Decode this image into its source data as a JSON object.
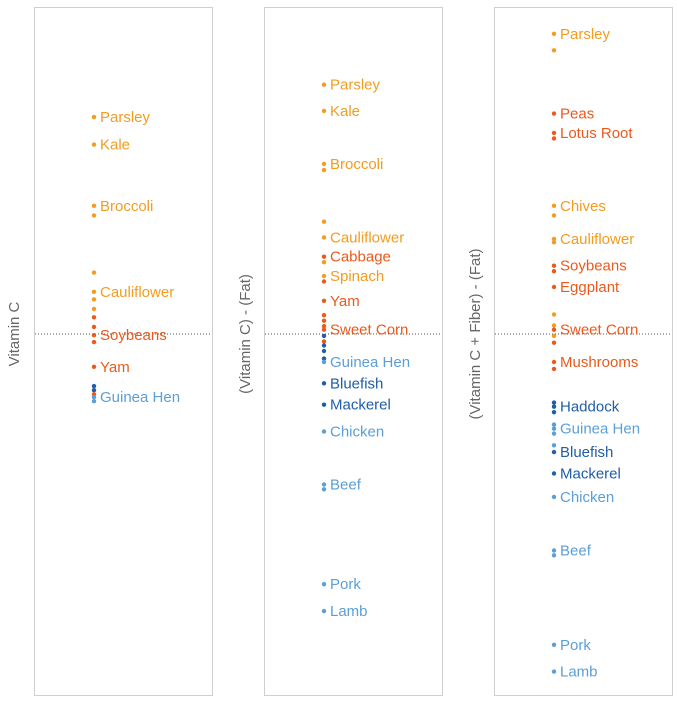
{
  "colors": {
    "orange": "#f39c1f",
    "dark_orange": "#ea5a1d",
    "light_blue": "#5b9fd6",
    "dark_blue": "#1f5ea8",
    "panel_border": "#cfcfcf",
    "baseline": "#555555",
    "axis_label": "#666666"
  },
  "chart_data": [
    {
      "type": "scatter",
      "ylabel": "Vitamin C",
      "x": "single strip",
      "points": [
        {
          "label": "Parsley",
          "y": 0.84,
          "color": "orange"
        },
        {
          "label": "Kale",
          "y": 0.8,
          "color": "orange"
        },
        {
          "label": "Broccoli",
          "y": 0.711,
          "color": "orange"
        },
        {
          "label": "",
          "y": 0.697,
          "color": "orange"
        },
        {
          "label": "",
          "y": 0.614,
          "color": "orange"
        },
        {
          "label": "Cauliflower",
          "y": 0.586,
          "color": "orange"
        },
        {
          "label": "",
          "y": 0.575,
          "color": "orange"
        },
        {
          "label": "",
          "y": 0.561,
          "color": "orange"
        },
        {
          "label": "",
          "y": 0.549,
          "color": "dark_orange"
        },
        {
          "label": "",
          "y": 0.535,
          "color": "dark_orange"
        },
        {
          "label": "Soybeans",
          "y": 0.523,
          "color": "dark_orange"
        },
        {
          "label": "",
          "y": 0.513,
          "color": "dark_orange"
        },
        {
          "label": "Yam",
          "y": 0.477,
          "color": "dark_orange"
        },
        {
          "label": "",
          "y": 0.449,
          "color": "dark_blue"
        },
        {
          "label": "",
          "y": 0.443,
          "color": "dark_blue"
        },
        {
          "label": "",
          "y": 0.437,
          "color": "dark_orange"
        },
        {
          "label": "Guinea Hen",
          "y": 0.433,
          "color": "light_blue"
        },
        {
          "label": "",
          "y": 0.427,
          "color": "light_blue"
        }
      ]
    },
    {
      "type": "scatter",
      "ylabel": "(Vitamin C) - (Fat)",
      "x": "single strip",
      "points": [
        {
          "label": "Parsley",
          "y": 0.887,
          "color": "orange"
        },
        {
          "label": "Kale",
          "y": 0.849,
          "color": "orange"
        },
        {
          "label": "Broccoli",
          "y": 0.772,
          "color": "orange"
        },
        {
          "label": "",
          "y": 0.763,
          "color": "orange"
        },
        {
          "label": "",
          "y": 0.688,
          "color": "orange"
        },
        {
          "label": "Cauliflower",
          "y": 0.665,
          "color": "orange"
        },
        {
          "label": "Cabbage",
          "y": 0.637,
          "color": "dark_orange"
        },
        {
          "label": "",
          "y": 0.629,
          "color": "orange"
        },
        {
          "label": "Spinach",
          "y": 0.609,
          "color": "orange"
        },
        {
          "label": "",
          "y": 0.601,
          "color": "dark_orange"
        },
        {
          "label": "Yam",
          "y": 0.573,
          "color": "dark_orange"
        },
        {
          "label": "",
          "y": 0.552,
          "color": "dark_orange"
        },
        {
          "label": "",
          "y": 0.544,
          "color": "dark_orange"
        },
        {
          "label": "",
          "y": 0.536,
          "color": "dark_orange"
        },
        {
          "label": "Sweet Corn",
          "y": 0.531,
          "color": "dark_orange"
        },
        {
          "label": "",
          "y": 0.522,
          "color": "dark_blue"
        },
        {
          "label": "",
          "y": 0.514,
          "color": "dark_orange"
        },
        {
          "label": "",
          "y": 0.508,
          "color": "dark_blue"
        },
        {
          "label": "",
          "y": 0.5,
          "color": "dark_blue"
        },
        {
          "label": "",
          "y": 0.489,
          "color": "dark_blue"
        },
        {
          "label": "Guinea Hen",
          "y": 0.484,
          "color": "light_blue"
        },
        {
          "label": "Bluefish",
          "y": 0.453,
          "color": "dark_blue"
        },
        {
          "label": "Mackerel",
          "y": 0.422,
          "color": "dark_blue"
        },
        {
          "label": "Chicken",
          "y": 0.383,
          "color": "light_blue"
        },
        {
          "label": "Beef",
          "y": 0.306,
          "color": "light_blue"
        },
        {
          "label": "",
          "y": 0.299,
          "color": "light_blue"
        },
        {
          "label": "Pork",
          "y": 0.161,
          "color": "light_blue"
        },
        {
          "label": "Lamb",
          "y": 0.122,
          "color": "light_blue"
        }
      ]
    },
    {
      "type": "scatter",
      "ylabel": "(Vitamin C + Fiber) - (Fat)",
      "x": "single strip",
      "points": [
        {
          "label": "Parsley",
          "y": 0.961,
          "color": "orange"
        },
        {
          "label": "",
          "y": 0.937,
          "color": "orange"
        },
        {
          "label": "Peas",
          "y": 0.845,
          "color": "dark_orange"
        },
        {
          "label": "Lotus Root",
          "y": 0.817,
          "color": "dark_orange"
        },
        {
          "label": "",
          "y": 0.809,
          "color": "dark_orange"
        },
        {
          "label": "Chives",
          "y": 0.711,
          "color": "orange"
        },
        {
          "label": "",
          "y": 0.697,
          "color": "orange"
        },
        {
          "label": "Cauliflower",
          "y": 0.663,
          "color": "orange"
        },
        {
          "label": "",
          "y": 0.658,
          "color": "orange"
        },
        {
          "label": "Soybeans",
          "y": 0.624,
          "color": "dark_orange"
        },
        {
          "label": "",
          "y": 0.616,
          "color": "dark_orange"
        },
        {
          "label": "Eggplant",
          "y": 0.593,
          "color": "dark_orange"
        },
        {
          "label": "",
          "y": 0.553,
          "color": "orange"
        },
        {
          "label": "",
          "y": 0.537,
          "color": "orange"
        },
        {
          "label": "Sweet Corn",
          "y": 0.531,
          "color": "dark_orange"
        },
        {
          "label": "",
          "y": 0.522,
          "color": "orange"
        },
        {
          "label": "",
          "y": 0.512,
          "color": "dark_orange"
        },
        {
          "label": "Mushrooms",
          "y": 0.484,
          "color": "dark_orange"
        },
        {
          "label": "",
          "y": 0.474,
          "color": "dark_orange"
        },
        {
          "label": "",
          "y": 0.425,
          "color": "dark_blue"
        },
        {
          "label": "Haddock",
          "y": 0.419,
          "color": "dark_blue"
        },
        {
          "label": "",
          "y": 0.411,
          "color": "dark_blue"
        },
        {
          "label": "",
          "y": 0.393,
          "color": "light_blue"
        },
        {
          "label": "Guinea Hen",
          "y": 0.387,
          "color": "light_blue"
        },
        {
          "label": "",
          "y": 0.38,
          "color": "light_blue"
        },
        {
          "label": "",
          "y": 0.363,
          "color": "light_blue"
        },
        {
          "label": "Bluefish",
          "y": 0.353,
          "color": "dark_blue"
        },
        {
          "label": "Mackerel",
          "y": 0.322,
          "color": "dark_blue"
        },
        {
          "label": "Chicken",
          "y": 0.288,
          "color": "light_blue"
        },
        {
          "label": "Beef",
          "y": 0.21,
          "color": "light_blue"
        },
        {
          "label": "",
          "y": 0.203,
          "color": "light_blue"
        },
        {
          "label": "Pork",
          "y": 0.073,
          "color": "light_blue"
        },
        {
          "label": "Lamb",
          "y": 0.034,
          "color": "light_blue"
        }
      ]
    }
  ]
}
